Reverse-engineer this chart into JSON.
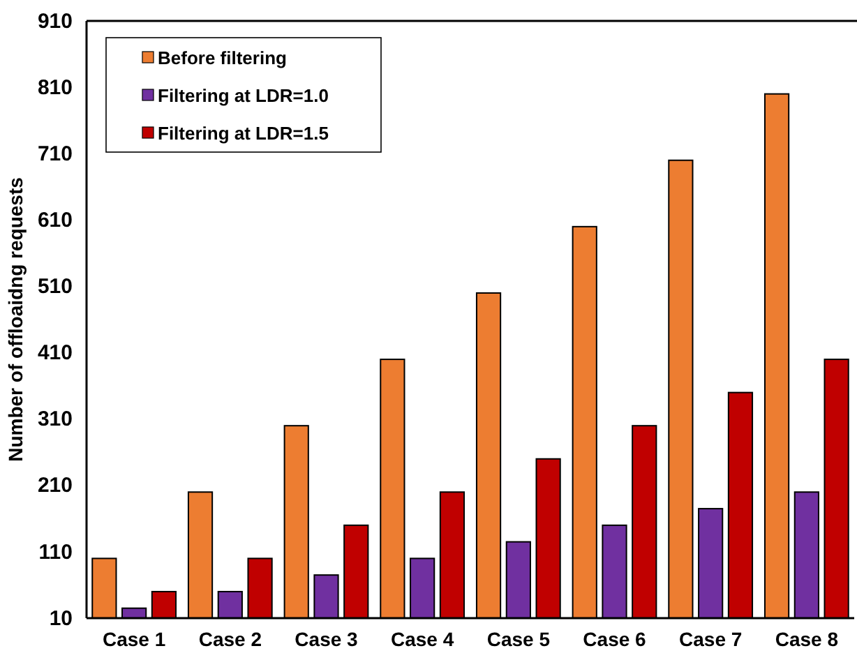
{
  "chart_data": {
    "type": "bar",
    "ylabel": "Number of offloaidng requests",
    "categories": [
      "Case 1",
      "Case 2",
      "Case 3",
      "Case 4",
      "Case 5",
      "Case 6",
      "Case 7",
      "Case 8"
    ],
    "series": [
      {
        "name": "Before filtering",
        "color": "#ed7d31",
        "values": [
          100,
          200,
          300,
          400,
          500,
          600,
          700,
          800
        ]
      },
      {
        "name": "Filtering at LDR=1.0",
        "color": "#7030a0",
        "values": [
          25,
          50,
          75,
          100,
          125,
          150,
          175,
          200
        ]
      },
      {
        "name": "Filtering at LDR=1.5",
        "color": "#c00000",
        "values": [
          50,
          100,
          150,
          200,
          250,
          300,
          350,
          400
        ]
      }
    ],
    "ylim": [
      10,
      910
    ],
    "yticks": [
      10,
      110,
      210,
      310,
      410,
      510,
      610,
      710,
      810,
      910
    ],
    "grid": false,
    "legend": "top left"
  }
}
